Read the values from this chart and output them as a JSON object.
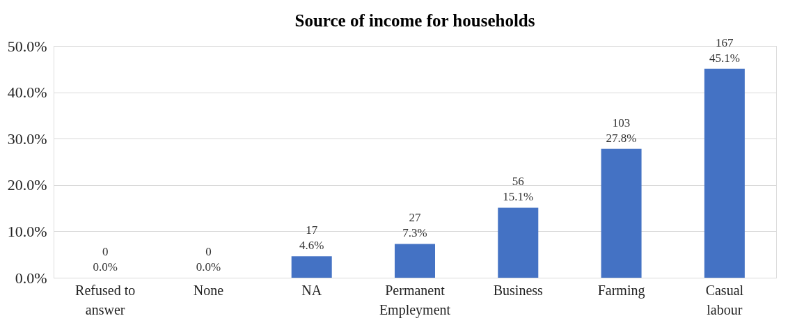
{
  "chart_data": {
    "type": "bar",
    "title": "Source of income for households",
    "categories": [
      "Refused to answer",
      "None",
      "NA",
      "Permanent Empleyment",
      "Business",
      "Farming",
      "Casual labour"
    ],
    "values": [
      0.0,
      0.0,
      4.6,
      7.3,
      15.1,
      27.8,
      45.1
    ],
    "value_labels": [
      "0\n0.0%",
      "0\n0.0%",
      "17\n4.6%",
      "27\n7.3%",
      "56\n15.1%",
      "103\n27.8%",
      "167\n45.1%"
    ],
    "color": "#4472c4",
    "ylim": [
      0,
      50
    ],
    "yticks": [
      {
        "value": 0,
        "label": "0.0%"
      },
      {
        "value": 10,
        "label": "10.0%"
      },
      {
        "value": 20,
        "label": "20.0%"
      },
      {
        "value": 30,
        "label": "30.0%"
      },
      {
        "value": 40,
        "label": "40.0%"
      },
      {
        "value": 50,
        "label": "50.0%"
      }
    ],
    "grid": "y"
  }
}
